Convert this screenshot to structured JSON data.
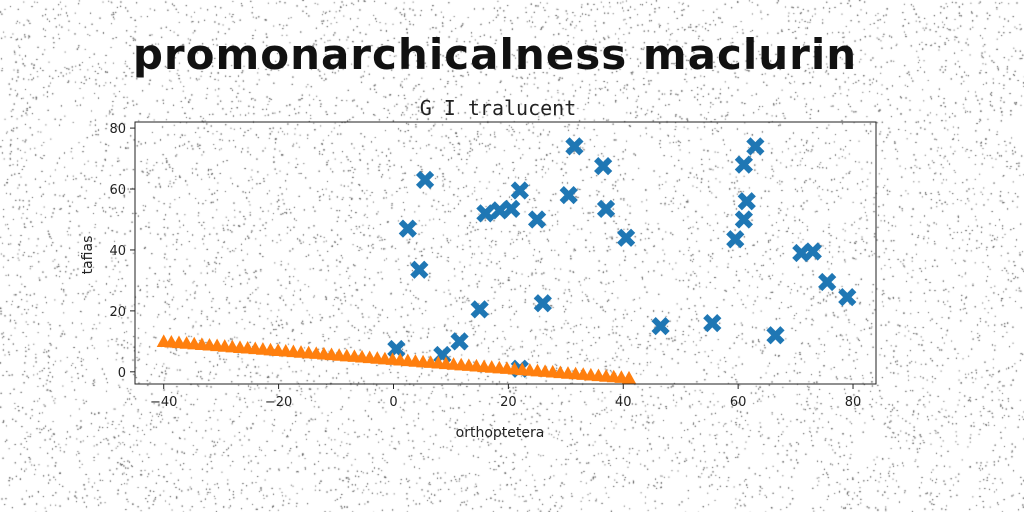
{
  "title": "promonarchicalness maclurin",
  "chart_data": {
    "type": "scatter",
    "title": "G I tralucent",
    "xlabel": "orthoptetera",
    "ylabel": "tafias",
    "xlim": [
      -45,
      84
    ],
    "ylim": [
      -4,
      82
    ],
    "xticks": [
      -40,
      -20,
      0,
      20,
      40,
      60,
      80
    ],
    "yticks": [
      0,
      20,
      40,
      60,
      80
    ],
    "grid": false,
    "legend": "none",
    "series": [
      {
        "marker": "x",
        "color": "#1f77b4",
        "points": [
          [
            0.5,
            7.5
          ],
          [
            2.5,
            47
          ],
          [
            4.5,
            33.5
          ],
          [
            5.5,
            63
          ],
          [
            8.5,
            5.5
          ],
          [
            11.5,
            10
          ],
          [
            15,
            20.5
          ],
          [
            16,
            52
          ],
          [
            18.5,
            53
          ],
          [
            20.5,
            53.5
          ],
          [
            22,
            59.5
          ],
          [
            22,
            1
          ],
          [
            25,
            50
          ],
          [
            26,
            22.5
          ],
          [
            30.5,
            58
          ],
          [
            31.5,
            74
          ],
          [
            36.5,
            67.5
          ],
          [
            37,
            53.5
          ],
          [
            40.5,
            44
          ],
          [
            46.5,
            15
          ],
          [
            55.5,
            16
          ],
          [
            59.5,
            43.5
          ],
          [
            61,
            68
          ],
          [
            61,
            50
          ],
          [
            61.5,
            56
          ],
          [
            63,
            74
          ],
          [
            66.5,
            12
          ],
          [
            71,
            39
          ],
          [
            73,
            39.5
          ],
          [
            75.5,
            29.5
          ],
          [
            79,
            24.5
          ]
        ]
      },
      {
        "marker": "triangle",
        "color": "#ff7f0e",
        "line_from": [
          -40,
          10
        ],
        "line_to": [
          41,
          -2
        ],
        "point_count": 62
      }
    ]
  }
}
